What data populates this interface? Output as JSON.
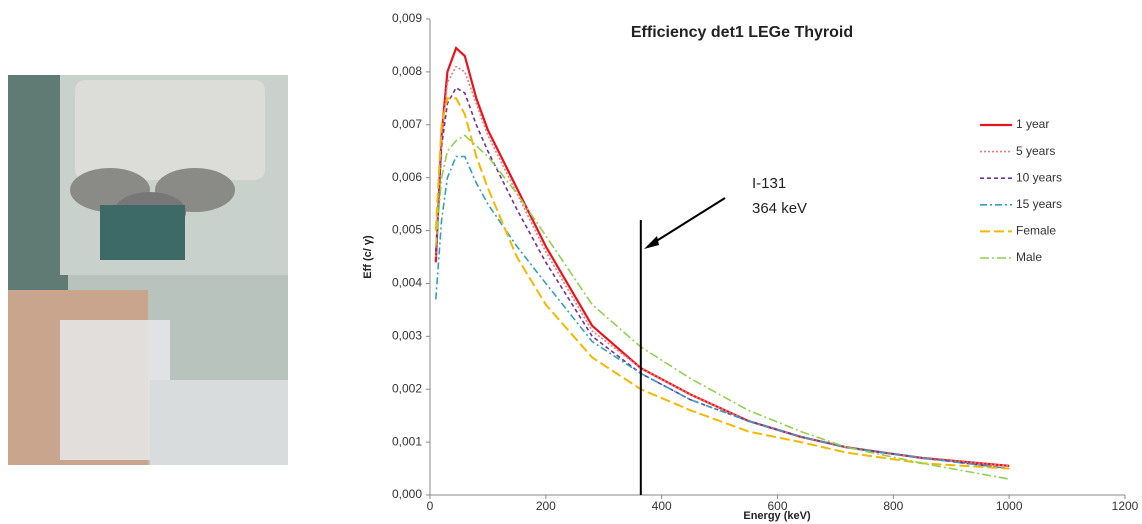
{
  "chart_data": {
    "type": "line",
    "title": "Efficiency det1 LEGe Thyroid",
    "x_label": "Energy (keV)",
    "y_label": "Eff (c/ γ)",
    "x": [
      10,
      20,
      30,
      45,
      60,
      80,
      100,
      150,
      200,
      280,
      364,
      450,
      550,
      640,
      720,
      850,
      1000
    ],
    "series": [
      {
        "name": "1 year",
        "color": "#e8141c",
        "dash": "none",
        "width": 2.2,
        "values": [
          0.0044,
          0.0068,
          0.008,
          0.00845,
          0.0083,
          0.0075,
          0.0069,
          0.0058,
          0.0047,
          0.0032,
          0.0024,
          0.0019,
          0.0014,
          0.0011,
          0.0009,
          0.0007,
          0.00055
        ]
      },
      {
        "name": "5 years",
        "color": "#f07878",
        "dash": "2,2",
        "width": 1.6,
        "values": [
          0.0045,
          0.0067,
          0.0078,
          0.0081,
          0.008,
          0.0074,
          0.0068,
          0.0057,
          0.0046,
          0.0031,
          0.0024,
          0.0019,
          0.0014,
          0.0011,
          0.0009,
          0.0007,
          0.00055
        ]
      },
      {
        "name": "10 years",
        "color": "#7030a0",
        "dash": "4,3",
        "width": 1.6,
        "values": [
          0.0046,
          0.0066,
          0.0074,
          0.0077,
          0.0076,
          0.007,
          0.0065,
          0.0054,
          0.0044,
          0.003,
          0.0023,
          0.0018,
          0.0014,
          0.0011,
          0.0009,
          0.0007,
          0.0005
        ]
      },
      {
        "name": "15 years",
        "color": "#31a0c0",
        "dash": "7,3,2,3",
        "width": 1.6,
        "values": [
          0.0037,
          0.0052,
          0.006,
          0.0064,
          0.0064,
          0.0059,
          0.0055,
          0.0047,
          0.004,
          0.0029,
          0.0023,
          0.0018,
          0.0014,
          0.0011,
          0.0009,
          0.0007,
          0.0005
        ]
      },
      {
        "name": "Female",
        "color": "#f5b800",
        "dash": "10,4",
        "width": 2,
        "values": [
          0.005,
          0.007,
          0.0075,
          0.0075,
          0.0072,
          0.0064,
          0.0058,
          0.0045,
          0.0036,
          0.0026,
          0.002,
          0.0016,
          0.0012,
          0.001,
          0.0008,
          0.0006,
          0.0005
        ]
      },
      {
        "name": "Male",
        "color": "#92d050",
        "dash": "9,3,2,3",
        "width": 1.6,
        "values": [
          0.0047,
          0.006,
          0.0065,
          0.0067,
          0.0068,
          0.0066,
          0.0064,
          0.0057,
          0.0049,
          0.0036,
          0.0028,
          0.0022,
          0.0016,
          0.0012,
          0.0009,
          0.0006,
          0.0003
        ]
      }
    ],
    "xlim": [
      0,
      1200
    ],
    "xticks": [
      0,
      200,
      400,
      600,
      800,
      1000,
      1200
    ],
    "ylim": [
      0,
      0.009
    ],
    "yticks": [
      {
        "value": 0,
        "label": "0,000"
      },
      {
        "value": 0.001,
        "label": "0,001"
      },
      {
        "value": 0.002,
        "label": "0,002"
      },
      {
        "value": 0.003,
        "label": "0,003"
      },
      {
        "value": 0.004,
        "label": "0,004"
      },
      {
        "value": 0.005,
        "label": "0,005"
      },
      {
        "value": 0.006,
        "label": "0,006"
      },
      {
        "value": 0.007,
        "label": "0,007"
      },
      {
        "value": 0.008,
        "label": "0,008"
      },
      {
        "value": 0.009,
        "label": "0,009"
      }
    ],
    "grid": false,
    "legend": "right",
    "marker_line": {
      "x": 364,
      "top": 0.0052,
      "labels": [
        "I-131",
        "364 keV"
      ]
    }
  }
}
